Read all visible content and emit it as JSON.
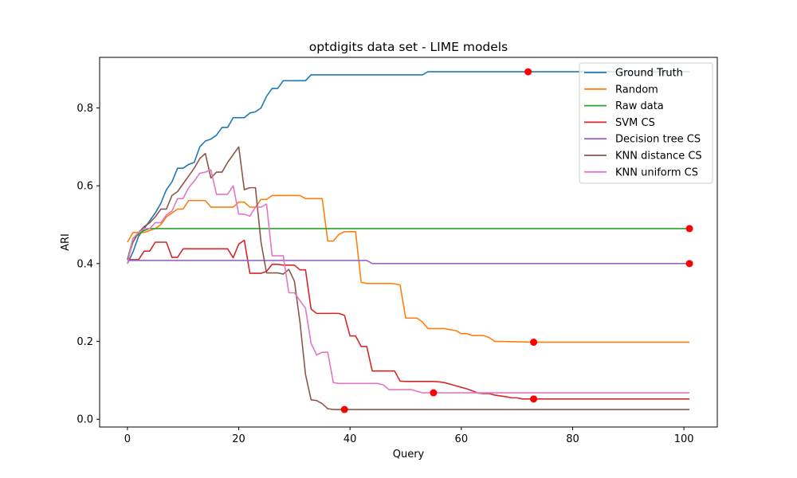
{
  "chart_data": {
    "type": "line",
    "title": "optdigits data set - LIME models",
    "xlabel": "Query",
    "ylabel": "ARI",
    "xlim": [
      -5,
      106
    ],
    "ylim": [
      -0.02,
      0.93
    ],
    "xticks": [
      0,
      20,
      40,
      60,
      80,
      100
    ],
    "yticks": [
      0.0,
      0.2,
      0.4,
      0.6,
      0.8
    ],
    "grid": false,
    "legend_position": "top-right",
    "marker_color": "#ff0000",
    "series": [
      {
        "name": "Ground Truth",
        "color": "#1f77b4",
        "points": [
          [
            0,
            0.4
          ],
          [
            1,
            0.43
          ],
          [
            2,
            0.47
          ],
          [
            3,
            0.49
          ],
          [
            4,
            0.51
          ],
          [
            5,
            0.53
          ],
          [
            6,
            0.555
          ],
          [
            7,
            0.59
          ],
          [
            8,
            0.61
          ],
          [
            9,
            0.645
          ],
          [
            10,
            0.645
          ],
          [
            11,
            0.655
          ],
          [
            12,
            0.66
          ],
          [
            13,
            0.7
          ],
          [
            14,
            0.715
          ],
          [
            15,
            0.72
          ],
          [
            16,
            0.73
          ],
          [
            17,
            0.75
          ],
          [
            18,
            0.75
          ],
          [
            19,
            0.775
          ],
          [
            20,
            0.775
          ],
          [
            21,
            0.775
          ],
          [
            22,
            0.787
          ],
          [
            23,
            0.79
          ],
          [
            24,
            0.8
          ],
          [
            25,
            0.83
          ],
          [
            26,
            0.85
          ],
          [
            27,
            0.85
          ],
          [
            28,
            0.87
          ],
          [
            29,
            0.87
          ],
          [
            30,
            0.87
          ],
          [
            31,
            0.87
          ],
          [
            32,
            0.87
          ],
          [
            33,
            0.885
          ],
          [
            34,
            0.885
          ],
          [
            40,
            0.885
          ],
          [
            53,
            0.885
          ],
          [
            54,
            0.893
          ],
          [
            72,
            0.893
          ],
          [
            101,
            0.893
          ]
        ],
        "marker": [
          72,
          0.893
        ]
      },
      {
        "name": "Random",
        "color": "#ff7f0e",
        "points": [
          [
            0,
            0.455
          ],
          [
            1,
            0.48
          ],
          [
            2,
            0.48
          ],
          [
            3,
            0.48
          ],
          [
            4,
            0.485
          ],
          [
            5,
            0.49
          ],
          [
            6,
            0.5
          ],
          [
            7,
            0.52
          ],
          [
            8,
            0.53
          ],
          [
            9,
            0.54
          ],
          [
            10,
            0.54
          ],
          [
            11,
            0.562
          ],
          [
            12,
            0.562
          ],
          [
            13,
            0.562
          ],
          [
            14,
            0.562
          ],
          [
            15,
            0.545
          ],
          [
            16,
            0.545
          ],
          [
            17,
            0.545
          ],
          [
            18,
            0.545
          ],
          [
            19,
            0.545
          ],
          [
            20,
            0.558
          ],
          [
            21,
            0.558
          ],
          [
            22,
            0.545
          ],
          [
            23,
            0.545
          ],
          [
            24,
            0.565
          ],
          [
            25,
            0.565
          ],
          [
            26,
            0.575
          ],
          [
            27,
            0.575
          ],
          [
            28,
            0.575
          ],
          [
            29,
            0.575
          ],
          [
            30,
            0.575
          ],
          [
            31,
            0.575
          ],
          [
            32,
            0.567
          ],
          [
            33,
            0.567
          ],
          [
            34,
            0.567
          ],
          [
            35,
            0.567
          ],
          [
            36,
            0.458
          ],
          [
            37,
            0.458
          ],
          [
            38,
            0.475
          ],
          [
            39,
            0.482
          ],
          [
            40,
            0.482
          ],
          [
            41,
            0.482
          ],
          [
            42,
            0.352
          ],
          [
            43,
            0.349
          ],
          [
            44,
            0.349
          ],
          [
            45,
            0.349
          ],
          [
            46,
            0.349
          ],
          [
            47,
            0.349
          ],
          [
            48,
            0.348
          ],
          [
            49,
            0.345
          ],
          [
            50,
            0.26
          ],
          [
            51,
            0.26
          ],
          [
            52,
            0.26
          ],
          [
            53,
            0.25
          ],
          [
            54,
            0.233
          ],
          [
            55,
            0.233
          ],
          [
            56,
            0.233
          ],
          [
            57,
            0.233
          ],
          [
            58,
            0.23
          ],
          [
            59,
            0.228
          ],
          [
            60,
            0.22
          ],
          [
            61,
            0.22
          ],
          [
            62,
            0.215
          ],
          [
            63,
            0.215
          ],
          [
            64,
            0.215
          ],
          [
            65,
            0.21
          ],
          [
            66,
            0.2
          ],
          [
            67,
            0.2
          ],
          [
            73,
            0.198
          ],
          [
            101,
            0.198
          ]
        ],
        "marker": [
          73,
          0.198
        ]
      },
      {
        "name": "Raw data",
        "color": "#2ca02c",
        "points": [
          [
            0,
            0.41
          ],
          [
            1,
            0.465
          ],
          [
            2,
            0.475
          ],
          [
            3,
            0.485
          ],
          [
            4,
            0.49
          ],
          [
            101,
            0.49
          ]
        ],
        "marker": [
          101,
          0.49
        ]
      },
      {
        "name": "SVM CS",
        "color": "#d62728",
        "points": [
          [
            0,
            0.41
          ],
          [
            1,
            0.41
          ],
          [
            2,
            0.41
          ],
          [
            3,
            0.432
          ],
          [
            4,
            0.432
          ],
          [
            5,
            0.455
          ],
          [
            6,
            0.455
          ],
          [
            7,
            0.455
          ],
          [
            8,
            0.416
          ],
          [
            9,
            0.416
          ],
          [
            10,
            0.438
          ],
          [
            11,
            0.438
          ],
          [
            12,
            0.438
          ],
          [
            13,
            0.438
          ],
          [
            14,
            0.438
          ],
          [
            15,
            0.438
          ],
          [
            16,
            0.438
          ],
          [
            17,
            0.438
          ],
          [
            18,
            0.438
          ],
          [
            19,
            0.415
          ],
          [
            20,
            0.45
          ],
          [
            21,
            0.46
          ],
          [
            22,
            0.375
          ],
          [
            23,
            0.375
          ],
          [
            24,
            0.375
          ],
          [
            25,
            0.38
          ],
          [
            26,
            0.398
          ],
          [
            27,
            0.398
          ],
          [
            28,
            0.396
          ],
          [
            29,
            0.396
          ],
          [
            30,
            0.396
          ],
          [
            31,
            0.384
          ],
          [
            32,
            0.384
          ],
          [
            33,
            0.283
          ],
          [
            34,
            0.272
          ],
          [
            35,
            0.272
          ],
          [
            36,
            0.272
          ],
          [
            37,
            0.272
          ],
          [
            38,
            0.272
          ],
          [
            39,
            0.267
          ],
          [
            40,
            0.214
          ],
          [
            41,
            0.214
          ],
          [
            42,
            0.187
          ],
          [
            43,
            0.187
          ],
          [
            44,
            0.124
          ],
          [
            45,
            0.124
          ],
          [
            46,
            0.124
          ],
          [
            47,
            0.124
          ],
          [
            48,
            0.124
          ],
          [
            49,
            0.098
          ],
          [
            50,
            0.097
          ],
          [
            51,
            0.097
          ],
          [
            52,
            0.097
          ],
          [
            53,
            0.097
          ],
          [
            54,
            0.097
          ],
          [
            55,
            0.097
          ],
          [
            56,
            0.096
          ],
          [
            57,
            0.094
          ],
          [
            58,
            0.09
          ],
          [
            59,
            0.086
          ],
          [
            60,
            0.082
          ],
          [
            61,
            0.078
          ],
          [
            62,
            0.073
          ],
          [
            63,
            0.067
          ],
          [
            64,
            0.066
          ],
          [
            65,
            0.066
          ],
          [
            66,
            0.062
          ],
          [
            67,
            0.06
          ],
          [
            68,
            0.058
          ],
          [
            69,
            0.055
          ],
          [
            70,
            0.055
          ],
          [
            71,
            0.052
          ],
          [
            72,
            0.052
          ],
          [
            73,
            0.052
          ],
          [
            101,
            0.052
          ]
        ],
        "marker": [
          73,
          0.052
        ]
      },
      {
        "name": "Decision tree CS",
        "color": "#9467bd",
        "points": [
          [
            0,
            0.408
          ],
          [
            43,
            0.408
          ],
          [
            44,
            0.4
          ],
          [
            101,
            0.4
          ]
        ],
        "marker": [
          101,
          0.4
        ]
      },
      {
        "name": "KNN distance CS",
        "color": "#8c564b",
        "points": [
          [
            0,
            0.41
          ],
          [
            1,
            0.455
          ],
          [
            2,
            0.48
          ],
          [
            3,
            0.495
          ],
          [
            4,
            0.505
          ],
          [
            5,
            0.52
          ],
          [
            6,
            0.54
          ],
          [
            7,
            0.54
          ],
          [
            8,
            0.575
          ],
          [
            9,
            0.585
          ],
          [
            10,
            0.605
          ],
          [
            11,
            0.625
          ],
          [
            12,
            0.645
          ],
          [
            13,
            0.67
          ],
          [
            14,
            0.683
          ],
          [
            15,
            0.62
          ],
          [
            16,
            0.635
          ],
          [
            17,
            0.635
          ],
          [
            18,
            0.66
          ],
          [
            19,
            0.68
          ],
          [
            20,
            0.7
          ],
          [
            21,
            0.59
          ],
          [
            22,
            0.595
          ],
          [
            23,
            0.595
          ],
          [
            24,
            0.455
          ],
          [
            25,
            0.376
          ],
          [
            26,
            0.376
          ],
          [
            27,
            0.376
          ],
          [
            28,
            0.373
          ],
          [
            29,
            0.385
          ],
          [
            30,
            0.355
          ],
          [
            31,
            0.25
          ],
          [
            32,
            0.115
          ],
          [
            33,
            0.05
          ],
          [
            34,
            0.048
          ],
          [
            35,
            0.04
          ],
          [
            36,
            0.027
          ],
          [
            37,
            0.025
          ],
          [
            38,
            0.025
          ],
          [
            39,
            0.025
          ],
          [
            101,
            0.025
          ]
        ],
        "marker": [
          39,
          0.025
        ]
      },
      {
        "name": "KNN uniform CS",
        "color": "#e377c2",
        "points": [
          [
            0,
            0.4
          ],
          [
            1,
            0.465
          ],
          [
            2,
            0.48
          ],
          [
            3,
            0.49
          ],
          [
            4,
            0.49
          ],
          [
            5,
            0.505
          ],
          [
            6,
            0.505
          ],
          [
            7,
            0.525
          ],
          [
            8,
            0.535
          ],
          [
            9,
            0.567
          ],
          [
            10,
            0.567
          ],
          [
            11,
            0.595
          ],
          [
            12,
            0.612
          ],
          [
            13,
            0.632
          ],
          [
            14,
            0.635
          ],
          [
            15,
            0.641
          ],
          [
            16,
            0.578
          ],
          [
            17,
            0.578
          ],
          [
            18,
            0.578
          ],
          [
            19,
            0.6
          ],
          [
            20,
            0.527
          ],
          [
            21,
            0.527
          ],
          [
            22,
            0.522
          ],
          [
            23,
            0.545
          ],
          [
            24,
            0.545
          ],
          [
            25,
            0.553
          ],
          [
            26,
            0.42
          ],
          [
            27,
            0.42
          ],
          [
            28,
            0.42
          ],
          [
            29,
            0.325
          ],
          [
            30,
            0.325
          ],
          [
            31,
            0.305
          ],
          [
            32,
            0.285
          ],
          [
            33,
            0.195
          ],
          [
            34,
            0.165
          ],
          [
            35,
            0.172
          ],
          [
            36,
            0.172
          ],
          [
            37,
            0.094
          ],
          [
            38,
            0.092
          ],
          [
            39,
            0.092
          ],
          [
            45,
            0.092
          ],
          [
            46,
            0.088
          ],
          [
            47,
            0.076
          ],
          [
            51,
            0.076
          ],
          [
            52,
            0.072
          ],
          [
            53,
            0.068
          ],
          [
            55,
            0.068
          ],
          [
            101,
            0.068
          ]
        ],
        "marker": [
          55,
          0.068
        ]
      }
    ]
  }
}
